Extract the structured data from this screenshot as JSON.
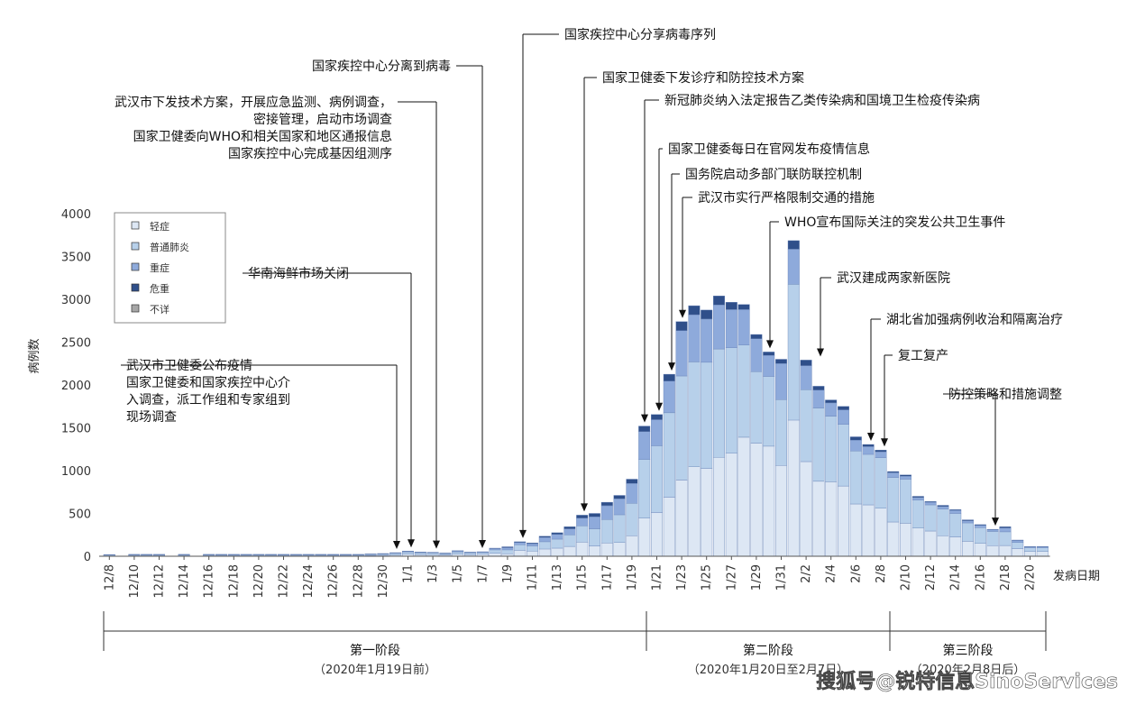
{
  "chart_data": {
    "type": "bar",
    "stacked": true,
    "ylabel": "病例数",
    "xlabel": "发病日期",
    "ylim": [
      0,
      4000
    ],
    "yticks": [
      0,
      500,
      1000,
      1500,
      2000,
      2500,
      3000,
      3500,
      4000
    ],
    "grid": false,
    "legend_position": "top-left",
    "categories": [
      "12/8",
      "12/9",
      "12/10",
      "12/11",
      "12/12",
      "12/13",
      "12/14",
      "12/15",
      "12/16",
      "12/17",
      "12/18",
      "12/19",
      "12/20",
      "12/21",
      "12/22",
      "12/23",
      "12/24",
      "12/25",
      "12/26",
      "12/27",
      "12/28",
      "12/29",
      "12/30",
      "12/31",
      "1/1",
      "1/2",
      "1/3",
      "1/4",
      "1/5",
      "1/6",
      "1/7",
      "1/8",
      "1/9",
      "1/10",
      "1/11",
      "1/12",
      "1/13",
      "1/14",
      "1/15",
      "1/16",
      "1/17",
      "1/18",
      "1/19",
      "1/20",
      "1/21",
      "1/22",
      "1/23",
      "1/24",
      "1/25",
      "1/26",
      "1/27",
      "1/28",
      "1/29",
      "1/30",
      "1/31",
      "2/1",
      "2/2",
      "2/3",
      "2/4",
      "2/5",
      "2/6",
      "2/7",
      "2/8",
      "2/9",
      "2/10",
      "2/11",
      "2/12",
      "2/13",
      "2/14",
      "2/15",
      "2/16",
      "2/17",
      "2/18",
      "2/19",
      "2/20",
      "2/21"
    ],
    "tick_labels": [
      "12/8",
      "12/10",
      "12/12",
      "12/14",
      "12/16",
      "12/18",
      "12/20",
      "12/22",
      "12/24",
      "12/26",
      "12/28",
      "12/30",
      "1/1",
      "1/3",
      "1/5",
      "1/7",
      "1/9",
      "1/11",
      "1/13",
      "1/15",
      "1/17",
      "1/19",
      "1/21",
      "1/23",
      "1/25",
      "1/27",
      "1/29",
      "1/31",
      "2/2",
      "2/4",
      "2/6",
      "2/8",
      "2/10",
      "2/12",
      "2/14",
      "2/16",
      "2/18",
      "2/20"
    ],
    "series": [
      {
        "name": "轻症",
        "color": "#dde7f4",
        "values": [
          5,
          0,
          5,
          5,
          5,
          0,
          5,
          0,
          5,
          5,
          5,
          5,
          5,
          5,
          5,
          5,
          5,
          5,
          5,
          5,
          5,
          8,
          10,
          15,
          25,
          20,
          18,
          15,
          25,
          20,
          25,
          35,
          30,
          70,
          60,
          85,
          95,
          115,
          165,
          120,
          155,
          160,
          240,
          445,
          510,
          690,
          890,
          1045,
          1025,
          1155,
          1205,
          1390,
          1320,
          1285,
          1060,
          1590,
          1105,
          875,
          870,
          820,
          610,
          600,
          560,
          400,
          385,
          330,
          295,
          240,
          225,
          175,
          150,
          125,
          125,
          90,
          55,
          55
        ]
      },
      {
        "name": "普通肺炎",
        "color": "#b7d0ea",
        "values": [
          8,
          0,
          10,
          10,
          10,
          0,
          10,
          0,
          10,
          10,
          10,
          10,
          10,
          10,
          10,
          10,
          10,
          10,
          10,
          10,
          10,
          12,
          15,
          20,
          25,
          20,
          20,
          15,
          25,
          20,
          20,
          40,
          45,
          65,
          60,
          85,
          105,
          135,
          190,
          200,
          275,
          325,
          380,
          685,
          780,
          985,
          1215,
          1225,
          1240,
          1265,
          1230,
          1075,
          835,
          815,
          770,
          1585,
          840,
          855,
          765,
          720,
          620,
          590,
          590,
          520,
          515,
          325,
          305,
          310,
          275,
          215,
          185,
          165,
          160,
          70,
          45,
          45
        ]
      },
      {
        "name": "重症",
        "color": "#8eaadb",
        "values": [
          5,
          0,
          5,
          5,
          5,
          0,
          5,
          0,
          5,
          5,
          5,
          5,
          5,
          5,
          5,
          5,
          5,
          5,
          5,
          5,
          5,
          5,
          5,
          5,
          5,
          5,
          5,
          5,
          10,
          5,
          5,
          15,
          25,
          25,
          25,
          50,
          55,
          70,
          90,
          140,
          160,
          185,
          230,
          325,
          305,
          370,
          530,
          550,
          505,
          515,
          445,
          415,
          385,
          245,
          420,
          410,
          280,
          210,
          155,
          170,
          125,
          90,
          70,
          55,
          35,
          30,
          30,
          30,
          35,
          25,
          25,
          20,
          45,
          25,
          10,
          10
        ]
      },
      {
        "name": "危重",
        "color": "#2f4f8a",
        "values": [
          2,
          0,
          2,
          2,
          2,
          0,
          2,
          0,
          2,
          2,
          2,
          2,
          2,
          2,
          2,
          2,
          2,
          2,
          2,
          2,
          2,
          2,
          2,
          2,
          5,
          5,
          3,
          3,
          5,
          3,
          3,
          5,
          10,
          10,
          10,
          15,
          20,
          25,
          35,
          40,
          40,
          40,
          50,
          65,
          60,
          80,
          105,
          105,
          105,
          105,
          85,
          60,
          50,
          40,
          50,
          100,
          65,
          45,
          35,
          40,
          40,
          25,
          20,
          15,
          15,
          15,
          10,
          15,
          10,
          10,
          10,
          5,
          15,
          5,
          5,
          5
        ]
      },
      {
        "name": "不详",
        "color": "#a6a6a6",
        "values": [
          0,
          0,
          0,
          0,
          0,
          0,
          0,
          0,
          0,
          0,
          0,
          0,
          0,
          0,
          0,
          0,
          0,
          0,
          0,
          0,
          0,
          0,
          0,
          0,
          0,
          0,
          0,
          0,
          0,
          0,
          0,
          0,
          0,
          0,
          0,
          0,
          0,
          0,
          0,
          0,
          0,
          0,
          0,
          0,
          0,
          0,
          0,
          0,
          0,
          0,
          0,
          0,
          0,
          0,
          0,
          0,
          0,
          0,
          0,
          0,
          0,
          0,
          0,
          0,
          0,
          0,
          0,
          0,
          0,
          0,
          0,
          0,
          0,
          0,
          0,
          0
        ]
      }
    ],
    "annotations": [
      {
        "date": "12/31",
        "lines": [
          "武汉市卫健委公布疫情",
          "国家卫健委和国家疾控中心介",
          "入调查，派工作组和专家组到",
          "现场调查"
        ]
      },
      {
        "date": "1/1",
        "lines": [
          "华南海鲜市场关闭"
        ]
      },
      {
        "date": "1/3",
        "lines": [
          "武汉市下发技术方案，开展应急监测、病例调查，",
          "密接管理，启动市场调查",
          "国家卫健委向WHO和相关国家和地区通报信息",
          "国家疾控中心完成基因组测序"
        ]
      },
      {
        "date": "1/7",
        "lines": [
          "国家疾控中心分离到病毒"
        ]
      },
      {
        "date": "1/10",
        "lines": [
          "国家疾控中心分享病毒序列"
        ]
      },
      {
        "date": "1/15",
        "lines": [
          "国家卫健委下发诊疗和防控技术方案"
        ]
      },
      {
        "date": "1/20",
        "lines": [
          "新冠肺炎纳入法定报告乙类传染病和国境卫生检疫传染病"
        ]
      },
      {
        "date": "1/21",
        "lines": [
          "国家卫健委每日在官网发布疫情信息"
        ]
      },
      {
        "date": "1/22",
        "lines": [
          "国务院启动多部门联防联控机制"
        ]
      },
      {
        "date": "1/23",
        "lines": [
          "武汉市实行严格限制交通的措施"
        ]
      },
      {
        "date": "1/30",
        "lines": [
          "WHO宣布国际关注的突发公共卫生事件"
        ]
      },
      {
        "date": "2/2",
        "lines": [
          "武汉建成两家新医院"
        ]
      },
      {
        "date": "2/7",
        "lines": [
          "湖北省加强病例收治和隔离治疗"
        ]
      },
      {
        "date": "2/8",
        "lines": [
          "复工复产"
        ]
      },
      {
        "date": "2/17",
        "lines": [
          "防控策略和措施调整"
        ]
      }
    ],
    "stages": [
      {
        "title": "第一阶段",
        "range": "（2020年1月19日前）"
      },
      {
        "title": "第二阶段",
        "range": "（2020年1月20日至2月7日）"
      },
      {
        "title": "第三阶段",
        "range": "（2020年2月8日后）"
      }
    ]
  },
  "watermark": "搜狐号@锐特信息SinoServices"
}
